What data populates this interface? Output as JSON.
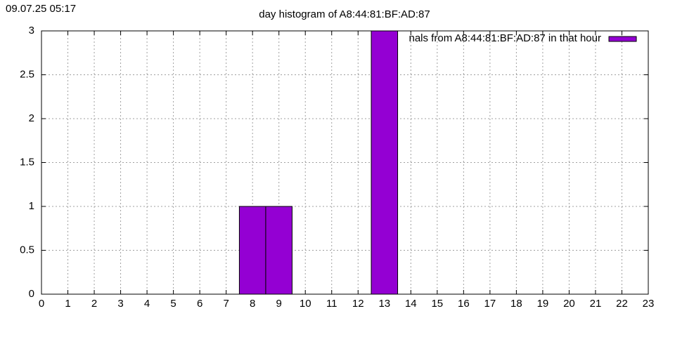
{
  "timestamp": "09.07.25 05:17",
  "chart_data": {
    "type": "bar",
    "title": "day histogram of A8:44:81:BF:AD:87",
    "legend_label": "nals from A8:44:81:BF:AD:87 in that hour",
    "legend": "top-right",
    "x": [
      8,
      9,
      13
    ],
    "values": [
      1,
      1,
      3
    ],
    "color": "#9400d3",
    "xlim": [
      0,
      23
    ],
    "xticks": [
      0,
      1,
      2,
      3,
      4,
      5,
      6,
      7,
      8,
      9,
      10,
      11,
      12,
      13,
      14,
      15,
      16,
      17,
      18,
      19,
      20,
      21,
      22,
      23
    ],
    "ylim": [
      0,
      3
    ],
    "yticks": [
      0,
      0.5,
      1,
      1.5,
      2,
      2.5,
      3
    ],
    "grid": true
  }
}
